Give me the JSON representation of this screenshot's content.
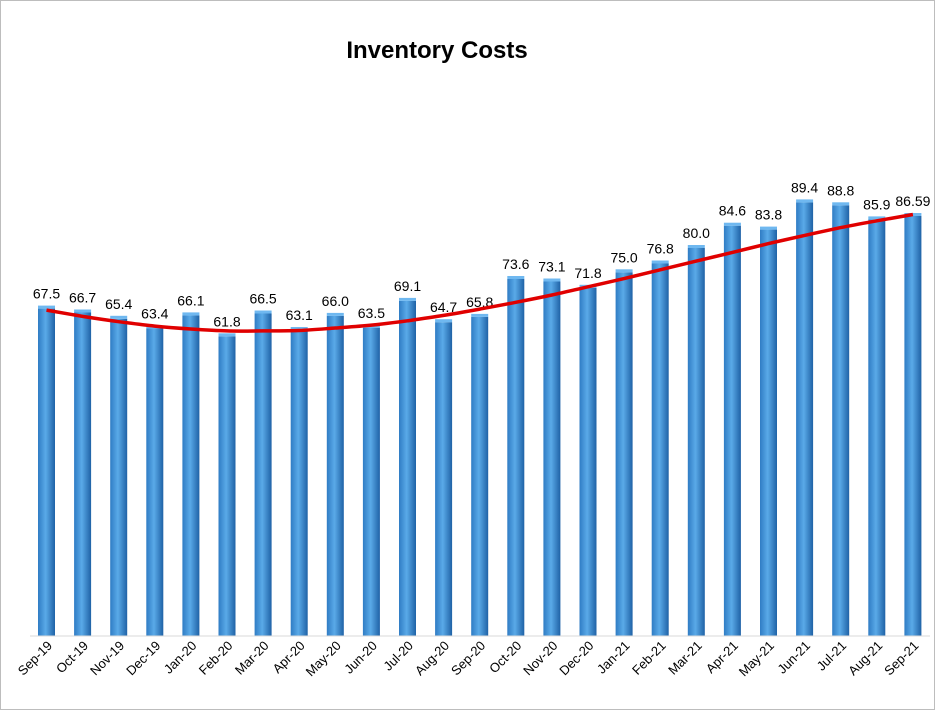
{
  "chart_data": {
    "type": "bar",
    "title": "Inventory Costs",
    "xlabel": "",
    "ylabel": "",
    "ylim": [
      0,
      95
    ],
    "grid": false,
    "legend": "none",
    "categories": [
      "Sep-19",
      "Oct-19",
      "Nov-19",
      "Dec-19",
      "Jan-20",
      "Feb-20",
      "Mar-20",
      "Apr-20",
      "May-20",
      "Jun-20",
      "Jul-20",
      "Aug-20",
      "Sep-20",
      "Oct-20",
      "Nov-20",
      "Dec-20",
      "Jan-21",
      "Feb-21",
      "Mar-21",
      "Apr-21",
      "May-21",
      "Jun-21",
      "Jul-21",
      "Aug-21",
      "Sep-21"
    ],
    "values": [
      67.5,
      66.7,
      65.4,
      63.4,
      66.1,
      61.8,
      66.5,
      63.1,
      66.0,
      63.5,
      69.1,
      64.7,
      65.8,
      73.6,
      73.1,
      71.8,
      75.0,
      76.8,
      80.0,
      84.6,
      83.8,
      89.4,
      88.8,
      85.9,
      86.59
    ],
    "value_labels": [
      "67.5",
      "66.7",
      "65.4",
      "63.4",
      "66.1",
      "61.8",
      "66.5",
      "63.1",
      "66.0",
      "63.5",
      "69.1",
      "64.7",
      "65.8",
      "73.6",
      "73.1",
      "71.8",
      "75.0",
      "76.8",
      "80.0",
      "84.6",
      "83.8",
      "89.4",
      "88.8",
      "85.9",
      "86.59"
    ],
    "trendline": {
      "type": "polynomial",
      "values": [
        67.2,
        65.9,
        64.8,
        63.9,
        63.3,
        62.9,
        62.9,
        63.0,
        63.5,
        64.1,
        65.0,
        66.1,
        67.4,
        68.8,
        70.3,
        72.0,
        73.7,
        75.5,
        77.3,
        79.1,
        80.9,
        82.6,
        84.2,
        85.6,
        86.9
      ]
    },
    "colors": {
      "bar": "#3a8fd6",
      "bar_light": "#6fb8f0",
      "bar_dark": "#1f62a6",
      "trend": "#e00000"
    }
  }
}
